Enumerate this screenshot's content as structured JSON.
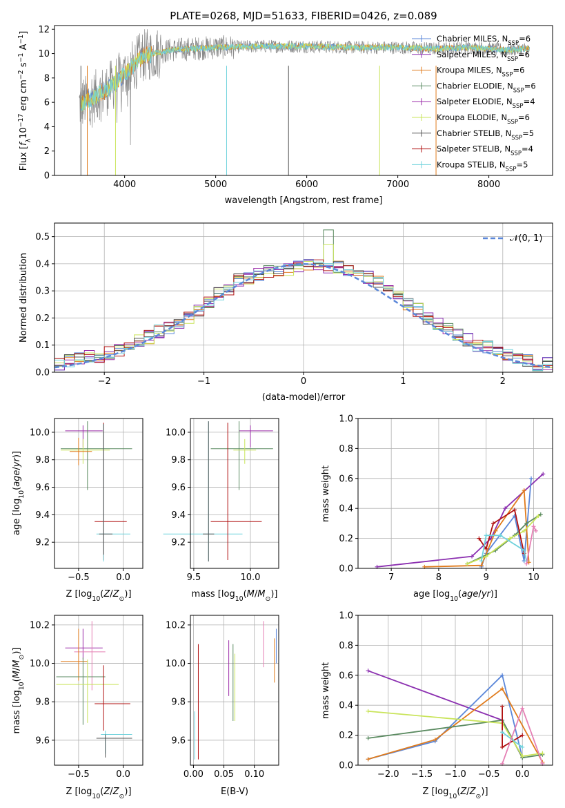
{
  "colors": {
    "Chabrier MILES": "#5b87d9",
    "Salpeter MILES": "#8b2fb0",
    "Kroupa MILES": "#e07b1c",
    "Chabrier ELODIE": "#5a8a60",
    "Salpeter ELODIE": "#9a2aa8",
    "Kroupa ELODIE": "#c9e45a",
    "Chabrier STELIB": "#555555",
    "Salpeter STELIB": "#b01010",
    "Kroupa STELIB": "#6fd2dc",
    "pink": "#e57fb4",
    "gauss": "#5b87d9"
  },
  "chart_data": [
    {
      "type": "line",
      "title": "PLATE=0268, MJD=51633, FIBERID=0426, z=0.089",
      "xlabel": "wavelength [Angstrom, rest frame]",
      "ylabel": "Flux [fλ10⁻¹⁷ erg cm⁻² s⁻¹ A⁻¹]",
      "xlim": [
        3230,
        8700
      ],
      "ylim": [
        0,
        12.3
      ],
      "xticks": [
        "4000",
        "5000",
        "6000",
        "7000",
        "8000"
      ],
      "yticks": [
        "0",
        "2",
        "4",
        "6",
        "8",
        "10",
        "12"
      ],
      "legend_position": "upper-right",
      "series": [
        {
          "name": "Chabrier MILES, N_SSP=6"
        },
        {
          "name": "Salpeter MILES, N_SSP=6"
        },
        {
          "name": "Kroupa MILES, N_SSP=6"
        },
        {
          "name": "Chabrier ELODIE, N_SSP=6"
        },
        {
          "name": "Salpeter ELODIE, N_SSP=4"
        },
        {
          "name": "Kroupa ELODIE, N_SSP=6"
        },
        {
          "name": "Chabrier STELIB, N_SSP=5"
        },
        {
          "name": "Salpeter STELIB, N_SSP=4"
        },
        {
          "name": "Kroupa STELIB, N_SSP=5"
        }
      ],
      "spectrum_trend": {
        "x": [
          3500,
          3600,
          3800,
          4000,
          4200,
          4500,
          5000,
          5500,
          6000,
          6500,
          7000,
          7400,
          7800,
          8200,
          8450
        ],
        "y": [
          5.8,
          6.2,
          7.0,
          8.3,
          9.8,
          10.3,
          10.5,
          10.6,
          10.6,
          10.5,
          10.5,
          10.4,
          10.5,
          10.3,
          10.4
        ]
      }
    },
    {
      "type": "bar",
      "xlabel": "(data-model)/error",
      "ylabel": "Normed distribution",
      "xlim": [
        -2.5,
        2.5
      ],
      "ylim": [
        0,
        0.55
      ],
      "xticks": [
        "−2",
        "−1",
        "0",
        "1",
        "2"
      ],
      "yticks": [
        "0.0",
        "0.1",
        "0.2",
        "0.3",
        "0.4",
        "0.5"
      ],
      "legend": "𝒩(0, 1)",
      "bin_edges_start": -2.5,
      "bin_width": 0.1,
      "series": [
        {
          "values": [
            0.03,
            0.04,
            0.05,
            0.06,
            0.06,
            0.07,
            0.08,
            0.1,
            0.12,
            0.13,
            0.15,
            0.16,
            0.18,
            0.2,
            0.23,
            0.26,
            0.29,
            0.31,
            0.34,
            0.35,
            0.36,
            0.37,
            0.37,
            0.38,
            0.39,
            0.4,
            0.4,
            0.39,
            0.39,
            0.38,
            0.36,
            0.35,
            0.33,
            0.31,
            0.28,
            0.25,
            0.23,
            0.2,
            0.18,
            0.16,
            0.14,
            0.12,
            0.1,
            0.09,
            0.07,
            0.06,
            0.05,
            0.04,
            0.03,
            0.03
          ]
        }
      ]
    },
    {
      "type": "scatter",
      "xlabel": "Z [log₁₀(Z/Z⊙)]",
      "ylabel": "age  [log₁₀(age/yr)]",
      "xlim": [
        -0.77,
        0.22
      ],
      "ylim": [
        9.01,
        10.1
      ],
      "xticks": [
        "−0.5",
        "0.0"
      ],
      "yticks": [
        "9.2",
        "9.4",
        "9.6",
        "9.8",
        "10.0"
      ]
    },
    {
      "type": "scatter",
      "xlabel": "mass [log₁₀(M/M⊙)]",
      "xlim": [
        9.47,
        10.25
      ],
      "ylim": [
        9.01,
        10.1
      ],
      "xticks": [
        "9.5",
        "10.0"
      ],
      "yticks": [
        "9.2",
        "9.4",
        "9.6",
        "9.8",
        "10.0"
      ]
    },
    {
      "type": "line",
      "xlabel": "age  [log₁₀(age/yr)]",
      "ylabel": "mass weight",
      "xlim": [
        6.3,
        10.4
      ],
      "ylim": [
        0,
        1.0
      ],
      "xticks": [
        "7",
        "8",
        "9",
        "10"
      ],
      "yticks": [
        "0.0",
        "0.2",
        "0.4",
        "0.6",
        "0.8",
        "1.0"
      ]
    },
    {
      "type": "scatter",
      "xlabel": "Z [log₁₀(Z/Z⊙)]",
      "ylabel": "mass [log₁₀(M/M⊙)]",
      "xlim": [
        -0.77,
        0.22
      ],
      "ylim": [
        9.47,
        10.25
      ],
      "xticks": [
        "−0.5",
        "0.0"
      ],
      "yticks": [
        "9.6",
        "9.8",
        "10.0",
        "10.2"
      ]
    },
    {
      "type": "scatter",
      "xlabel": "E(B-V)",
      "xlim": [
        -0.005,
        0.14
      ],
      "ylim": [
        9.47,
        10.25
      ],
      "xticks": [
        "0.00",
        "0.05",
        "0.10"
      ],
      "yticks": [
        "9.6",
        "9.8",
        "10.0",
        "10.2"
      ]
    },
    {
      "type": "line",
      "xlabel": "Z [log₁₀(Z/Z⊙)]",
      "ylabel": "mass weight",
      "xlim": [
        -2.45,
        0.45
      ],
      "ylim": [
        0,
        1.0
      ],
      "xticks": [
        "−2.0",
        "−1.5",
        "−1.0",
        "−0.5",
        "0.0"
      ],
      "yticks": [
        "0.0",
        "0.2",
        "0.4",
        "0.6",
        "0.8",
        "1.0"
      ]
    }
  ],
  "legend_labels": [
    "Chabrier MILES, N",
    "Salpeter MILES, N",
    "Kroupa MILES, N",
    "Chabrier ELODIE, N",
    "Salpeter ELODIE, N",
    "Kroupa ELODIE, N",
    "Chabrier STELIB, N",
    "Salpeter STELIB, N",
    "Kroupa STELIB, N"
  ],
  "legend_nssp": [
    "=6",
    "=6",
    "=6",
    "=6",
    "=4",
    "=6",
    "=5",
    "=4",
    "=5"
  ],
  "legend_sub": "SSP"
}
